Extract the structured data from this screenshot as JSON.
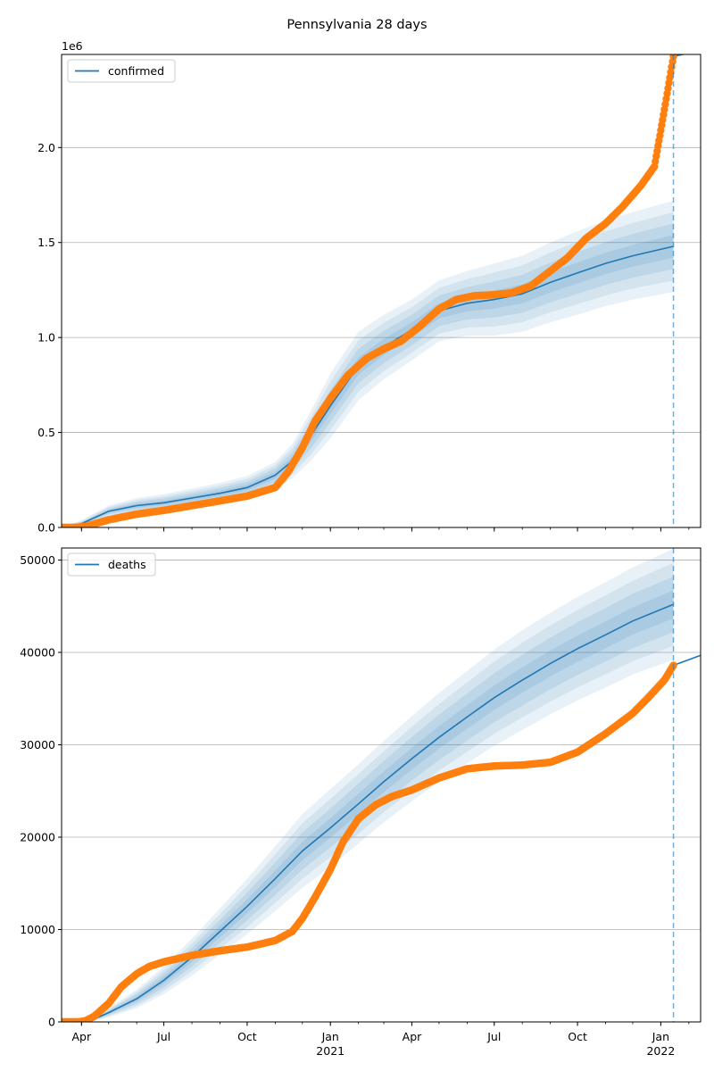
{
  "title": "Pennsylvania 28 days",
  "colors": {
    "model": "#1f77b4",
    "observed": "#ff7f0e",
    "band": "#1f77b4",
    "grid": "#b0b0b0",
    "cutoff": "#1f77b4"
  },
  "x_ticks": [
    {
      "date": "2020-04-01",
      "label": "Apr",
      "sublabel": ""
    },
    {
      "date": "2020-07-01",
      "label": "Jul",
      "sublabel": ""
    },
    {
      "date": "2020-10-01",
      "label": "Oct",
      "sublabel": ""
    },
    {
      "date": "2021-01-01",
      "label": "Jan",
      "sublabel": "2021"
    },
    {
      "date": "2021-04-01",
      "label": "Apr",
      "sublabel": ""
    },
    {
      "date": "2021-07-01",
      "label": "Jul",
      "sublabel": ""
    },
    {
      "date": "2021-10-01",
      "label": "Oct",
      "sublabel": ""
    },
    {
      "date": "2022-01-01",
      "label": "Jan",
      "sublabel": "2022"
    }
  ],
  "chart_data": [
    {
      "type": "line",
      "legend": {
        "label": "confirmed",
        "placement": "upper-left"
      },
      "y_offset_label": "1e6",
      "xlim": [
        "2020-03-10",
        "2022-02-14"
      ],
      "ylim": [
        0,
        2490000
      ],
      "y_ticks": [
        {
          "value": 0,
          "label": "0.0"
        },
        {
          "value": 500000,
          "label": "0.5"
        },
        {
          "value": 1000000,
          "label": "1.0"
        },
        {
          "value": 1500000,
          "label": "1.5"
        },
        {
          "value": 2000000,
          "label": "2.0"
        }
      ],
      "grid": "horizontal",
      "cutoff_date": "2022-01-15",
      "model": {
        "x": [
          "2020-03-10",
          "2020-04-01",
          "2020-05-01",
          "2020-06-01",
          "2020-07-01",
          "2020-08-01",
          "2020-09-01",
          "2020-10-01",
          "2020-11-01",
          "2020-11-20",
          "2020-12-10",
          "2021-01-01",
          "2021-02-01",
          "2021-03-01",
          "2021-04-01",
          "2021-05-01",
          "2021-06-01",
          "2021-07-01",
          "2021-08-01",
          "2021-09-01",
          "2021-10-01",
          "2021-11-01",
          "2021-12-01",
          "2022-01-15"
        ],
        "y": [
          0,
          20000,
          85000,
          115000,
          130000,
          155000,
          180000,
          210000,
          275000,
          350000,
          480000,
          640000,
          850000,
          950000,
          1040000,
          1140000,
          1180000,
          1200000,
          1230000,
          1290000,
          1340000,
          1390000,
          1430000,
          1480000
        ],
        "band_outer": [
          0,
          0.08
        ],
        "band_outer_width": [
          0,
          18000,
          30000,
          40000,
          45000,
          50000,
          55000,
          60000,
          70000,
          90000,
          130000,
          170000,
          180000,
          170000,
          160000,
          160000,
          170000,
          190000,
          200000,
          210000,
          220000,
          225000,
          230000,
          240000
        ],
        "band_inner_width": [
          0,
          8000,
          15000,
          20000,
          23000,
          25000,
          28000,
          30000,
          36000,
          45000,
          65000,
          85000,
          90000,
          85000,
          80000,
          80000,
          85000,
          95000,
          100000,
          105000,
          110000,
          112000,
          115000,
          120000
        ]
      },
      "observed": {
        "x": [
          "2020-03-10",
          "2020-03-25",
          "2020-04-05",
          "2020-04-20",
          "2020-05-01",
          "2020-06-01",
          "2020-07-01",
          "2020-08-01",
          "2020-09-01",
          "2020-10-01",
          "2020-11-01",
          "2020-11-15",
          "2020-12-01",
          "2020-12-15",
          "2021-01-01",
          "2021-01-20",
          "2021-02-10",
          "2021-03-01",
          "2021-03-20",
          "2021-04-10",
          "2021-05-01",
          "2021-05-20",
          "2021-06-10",
          "2021-07-01",
          "2021-07-20",
          "2021-08-10",
          "2021-09-01",
          "2021-09-20",
          "2021-10-10",
          "2021-11-01",
          "2021-11-20",
          "2021-12-10",
          "2021-12-25",
          "2022-01-05",
          "2022-01-15"
        ],
        "y": [
          0,
          0,
          5000,
          25000,
          40000,
          70000,
          90000,
          115000,
          140000,
          165000,
          210000,
          290000,
          420000,
          560000,
          680000,
          800000,
          890000,
          940000,
          980000,
          1060000,
          1150000,
          1200000,
          1220000,
          1225000,
          1235000,
          1270000,
          1350000,
          1420000,
          1520000,
          1600000,
          1690000,
          1800000,
          1900000,
          2200000,
          2480000
        ]
      }
    },
    {
      "type": "line",
      "legend": {
        "label": "deaths",
        "placement": "upper-left"
      },
      "y_offset_label": "",
      "xlim": [
        "2020-03-10",
        "2022-02-14"
      ],
      "ylim": [
        0,
        51300
      ],
      "y_ticks": [
        {
          "value": 0,
          "label": "0"
        },
        {
          "value": 10000,
          "label": "10000"
        },
        {
          "value": 20000,
          "label": "20000"
        },
        {
          "value": 30000,
          "label": "30000"
        },
        {
          "value": 40000,
          "label": "40000"
        },
        {
          "value": 50000,
          "label": "50000"
        }
      ],
      "grid": "horizontal",
      "cutoff_date": "2022-01-15",
      "model": {
        "x": [
          "2020-03-10",
          "2020-04-01",
          "2020-04-15",
          "2020-05-01",
          "2020-06-01",
          "2020-07-01",
          "2020-08-01",
          "2020-09-01",
          "2020-10-01",
          "2020-11-01",
          "2020-12-01",
          "2021-01-01",
          "2021-02-01",
          "2021-03-01",
          "2021-04-01",
          "2021-05-01",
          "2021-06-01",
          "2021-07-01",
          "2021-08-01",
          "2021-09-01",
          "2021-10-01",
          "2021-11-01",
          "2021-12-01",
          "2022-01-15"
        ],
        "y": [
          0,
          0,
          300,
          1000,
          2500,
          4500,
          7000,
          9800,
          12500,
          15500,
          18500,
          21000,
          23600,
          26000,
          28500,
          30800,
          33000,
          35100,
          37000,
          38800,
          40400,
          41900,
          43400,
          45200
        ],
        "band_outer_width": [
          0,
          0,
          200,
          500,
          1000,
          1500,
          2000,
          2500,
          3000,
          3500,
          4000,
          4200,
          4300,
          4400,
          4600,
          4800,
          5000,
          5200,
          5400,
          5500,
          5600,
          5700,
          5800,
          6000
        ],
        "band_inner_width": [
          0,
          0,
          100,
          250,
          500,
          750,
          1000,
          1250,
          1500,
          1750,
          2000,
          2100,
          2200,
          2250,
          2350,
          2450,
          2550,
          2650,
          2750,
          2800,
          2850,
          2900,
          2950,
          3000
        ]
      },
      "observed": {
        "x": [
          "2020-03-10",
          "2020-03-28",
          "2020-04-05",
          "2020-04-15",
          "2020-05-01",
          "2020-05-15",
          "2020-06-01",
          "2020-06-15",
          "2020-07-01",
          "2020-08-01",
          "2020-09-01",
          "2020-10-01",
          "2020-11-01",
          "2020-11-20",
          "2020-12-01",
          "2020-12-15",
          "2021-01-01",
          "2021-01-15",
          "2021-02-01",
          "2021-02-20",
          "2021-03-10",
          "2021-04-01",
          "2021-05-01",
          "2021-06-01",
          "2021-07-01",
          "2021-08-01",
          "2021-09-01",
          "2021-10-01",
          "2021-11-01",
          "2021-12-01",
          "2021-12-20",
          "2022-01-05",
          "2022-01-15"
        ],
        "y": [
          0,
          0,
          100,
          600,
          2000,
          3800,
          5200,
          6000,
          6500,
          7200,
          7700,
          8100,
          8800,
          9800,
          11200,
          13500,
          16500,
          19500,
          22000,
          23500,
          24400,
          25100,
          26400,
          27400,
          27700,
          27800,
          28100,
          29200,
          31200,
          33400,
          35300,
          37000,
          38600
        ]
      }
    }
  ]
}
